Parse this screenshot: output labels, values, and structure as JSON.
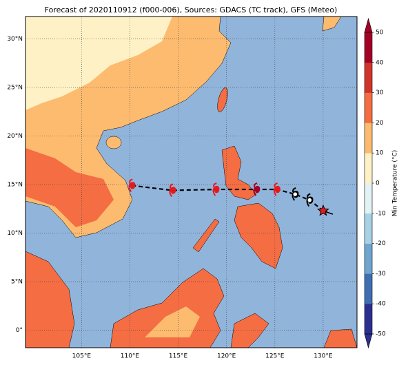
{
  "title": "Forecast of 2020110912 (f000-006), Sources: GDACS (TC track), GFS (Meteo)",
  "map": {
    "lon_range": [
      99.2,
      133.5
    ],
    "lat_range": [
      -1.8,
      32.3
    ],
    "xticks": [
      {
        "value": 105,
        "label": "105°E"
      },
      {
        "value": 110,
        "label": "110°E"
      },
      {
        "value": 115,
        "label": "115°E"
      },
      {
        "value": 120,
        "label": "120°E"
      },
      {
        "value": 125,
        "label": "125°E"
      },
      {
        "value": 130,
        "label": "130°E"
      }
    ],
    "yticks": [
      {
        "value": 30,
        "label": "30°N"
      },
      {
        "value": 25,
        "label": "25°N"
      },
      {
        "value": 20,
        "label": "20°N"
      },
      {
        "value": 15,
        "label": "15°N"
      },
      {
        "value": 10,
        "label": "10°N"
      },
      {
        "value": 5,
        "label": "5°N"
      },
      {
        "value": 0,
        "label": "0°"
      }
    ],
    "grid": true
  },
  "track": {
    "lon": [
      110.2,
      114.4,
      118.9,
      123.1,
      125.2,
      127.1,
      128.6,
      130.0
    ],
    "lat": [
      14.9,
      14.4,
      14.5,
      14.5,
      14.5,
      14.0,
      13.4,
      12.3
    ],
    "colors": [
      "#e31a1c",
      "#e31a1c",
      "#e31a1c",
      "#a50026",
      "#e31a1c",
      "#ffffff",
      "#ffffff",
      "#e31a1c"
    ]
  },
  "colorbar": {
    "label": "Min Temperature (°C)",
    "range": [
      -50,
      50
    ],
    "ticks": [
      50,
      40,
      30,
      20,
      10,
      0,
      -10,
      -20,
      -30,
      -40,
      -50
    ],
    "colors": [
      "#2b2f8f",
      "#3f6fb0",
      "#6fa6cf",
      "#a7d2e6",
      "#e3f3f5",
      "#fff1c6",
      "#fdbb6f",
      "#f46d43",
      "#d1342a",
      "#a50026"
    ]
  }
}
